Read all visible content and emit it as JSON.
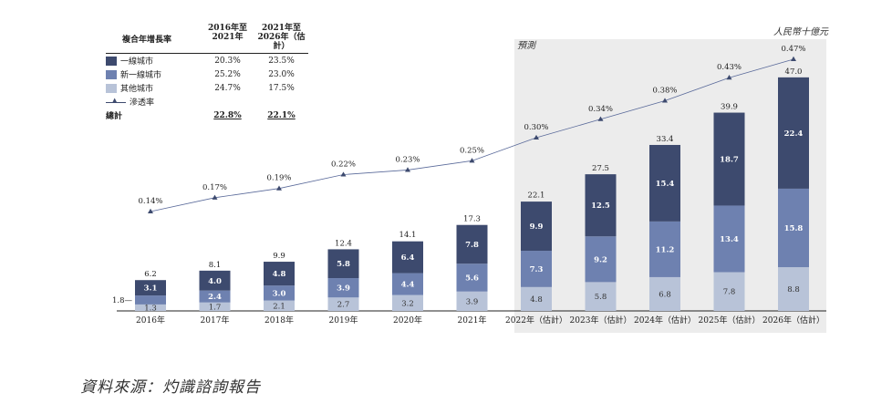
{
  "chart_data": {
    "type": "bar",
    "unit": "人民幣十億元",
    "forecast_label": "預測",
    "categories": [
      "2016年",
      "2017年",
      "2018年",
      "2019年",
      "2020年",
      "2021年",
      "2022年（估計）",
      "2023年（估計）",
      "2024年（估計）",
      "2025年（估計）",
      "2026年（估計）"
    ],
    "forecast_from_index": 6,
    "series": [
      {
        "name": "其他城市",
        "color": "#b8c3d8",
        "values": [
          1.3,
          1.7,
          2.1,
          2.7,
          3.2,
          3.9,
          4.8,
          5.8,
          6.8,
          7.8,
          8.8
        ],
        "labels": [
          "1.3",
          "1.7",
          "2.1",
          "2.7",
          "3.2",
          "3.9",
          "4.8",
          "5.8",
          "6.8",
          "7.8",
          "8.8"
        ]
      },
      {
        "name": "新一線城市",
        "color": "#6e81b0",
        "values": [
          1.8,
          2.4,
          3.0,
          3.9,
          4.4,
          5.6,
          7.3,
          9.2,
          11.2,
          13.4,
          15.8
        ],
        "labels": [
          "1.8",
          "2.4",
          "3.0",
          "3.9",
          "4.4",
          "5.6",
          "7.3",
          "9.2",
          "11.2",
          "13.4",
          "15.8"
        ]
      },
      {
        "name": "一線城市",
        "color": "#3d4a6e",
        "values": [
          3.1,
          4.0,
          4.8,
          5.8,
          6.4,
          7.8,
          9.9,
          12.5,
          15.4,
          18.7,
          22.4
        ],
        "labels": [
          "3.1",
          "4.0",
          "4.8",
          "5.8",
          "6.4",
          "7.8",
          "9.9",
          "12.5",
          "15.4",
          "18.7",
          "22.4"
        ]
      }
    ],
    "totals": [
      "6.2",
      "8.1",
      "9.9",
      "12.4",
      "14.1",
      "17.3",
      "22.1",
      "27.5",
      "33.4",
      "39.9",
      "47.0"
    ],
    "total_values": [
      6.2,
      8.1,
      9.9,
      12.4,
      14.1,
      17.3,
      22.1,
      27.5,
      33.4,
      39.9,
      47.0
    ],
    "penetration": {
      "name": "滲透率",
      "values": [
        0.14,
        0.17,
        0.19,
        0.22,
        0.23,
        0.25,
        0.3,
        0.34,
        0.38,
        0.43,
        0.47
      ],
      "labels": [
        "0.14%",
        "0.17%",
        "0.19%",
        "0.22%",
        "0.23%",
        "0.25%",
        "0.30%",
        "0.34%",
        "0.38%",
        "0.43%",
        "0.47%"
      ]
    },
    "ylim": [
      0,
      47
    ],
    "penetration_range": [
      0.14,
      0.47
    ]
  },
  "legend": {
    "header": {
      "label": "複合年增長率",
      "col1": "2016年至 2021年",
      "col2": "2021年至 2026年（估計）"
    },
    "rows": [
      {
        "name": "一線城市",
        "col1": "20.3%",
        "col2": "23.5%",
        "color": "#3d4a6e"
      },
      {
        "name": "新一線城市",
        "col1": "25.2%",
        "col2": "23.0%",
        "color": "#6e81b0"
      },
      {
        "name": "其他城市",
        "col1": "24.7%",
        "col2": "17.5%",
        "color": "#b8c3d8"
      }
    ],
    "line_label": "滲透率",
    "total": {
      "name": "總計",
      "col1": "22.8%",
      "col2": "22.1%"
    }
  },
  "source": "資料來源：灼識諮詢報告"
}
